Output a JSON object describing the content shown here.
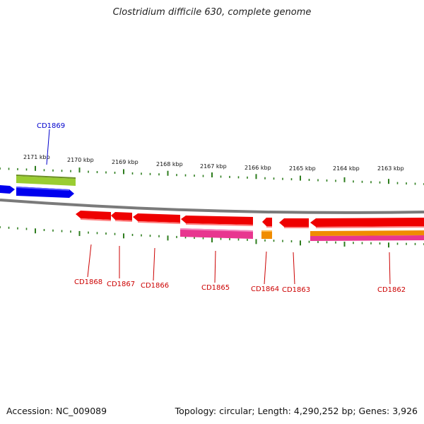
{
  "title": "Clostridium difficile 630, complete genome",
  "footer": {
    "accession": "Accession: NC_009089",
    "summary": "Topology: circular; Length: 4,290,252 bp; Genes: 3,926"
  },
  "colors": {
    "backbone": "#7a7a7a",
    "tick": "#2e7d1e",
    "gene_red": "#ee0000",
    "gene_blue": "#0000ee",
    "gene_green": "#9acd32",
    "gene_pink": "#e8368f",
    "gene_orange": "#f08c00",
    "label_blue": "#0000cc",
    "label_red": "#cc0000"
  },
  "ruler": {
    "labels": [
      "2171 kbp",
      "2170 kbp",
      "2169 kbp",
      "2168 kbp",
      "2167 kbp",
      "2166 kbp",
      "2165 kbp",
      "2164 kbp",
      "2163 kbp"
    ]
  },
  "genes": [
    {
      "name": "CD1869",
      "color": "blue",
      "strand": "-"
    },
    {
      "name": "CD1868",
      "color": "red",
      "strand": "-"
    },
    {
      "name": "CD1867",
      "color": "red",
      "strand": "-"
    },
    {
      "name": "CD1866",
      "color": "red",
      "strand": "-"
    },
    {
      "name": "CD1865",
      "color": "red",
      "strand": "-"
    },
    {
      "name": "CD1864",
      "color": "red",
      "strand": "-"
    },
    {
      "name": "CD1863",
      "color": "red",
      "strand": "-"
    },
    {
      "name": "CD1862",
      "color": "red",
      "strand": "-"
    }
  ]
}
